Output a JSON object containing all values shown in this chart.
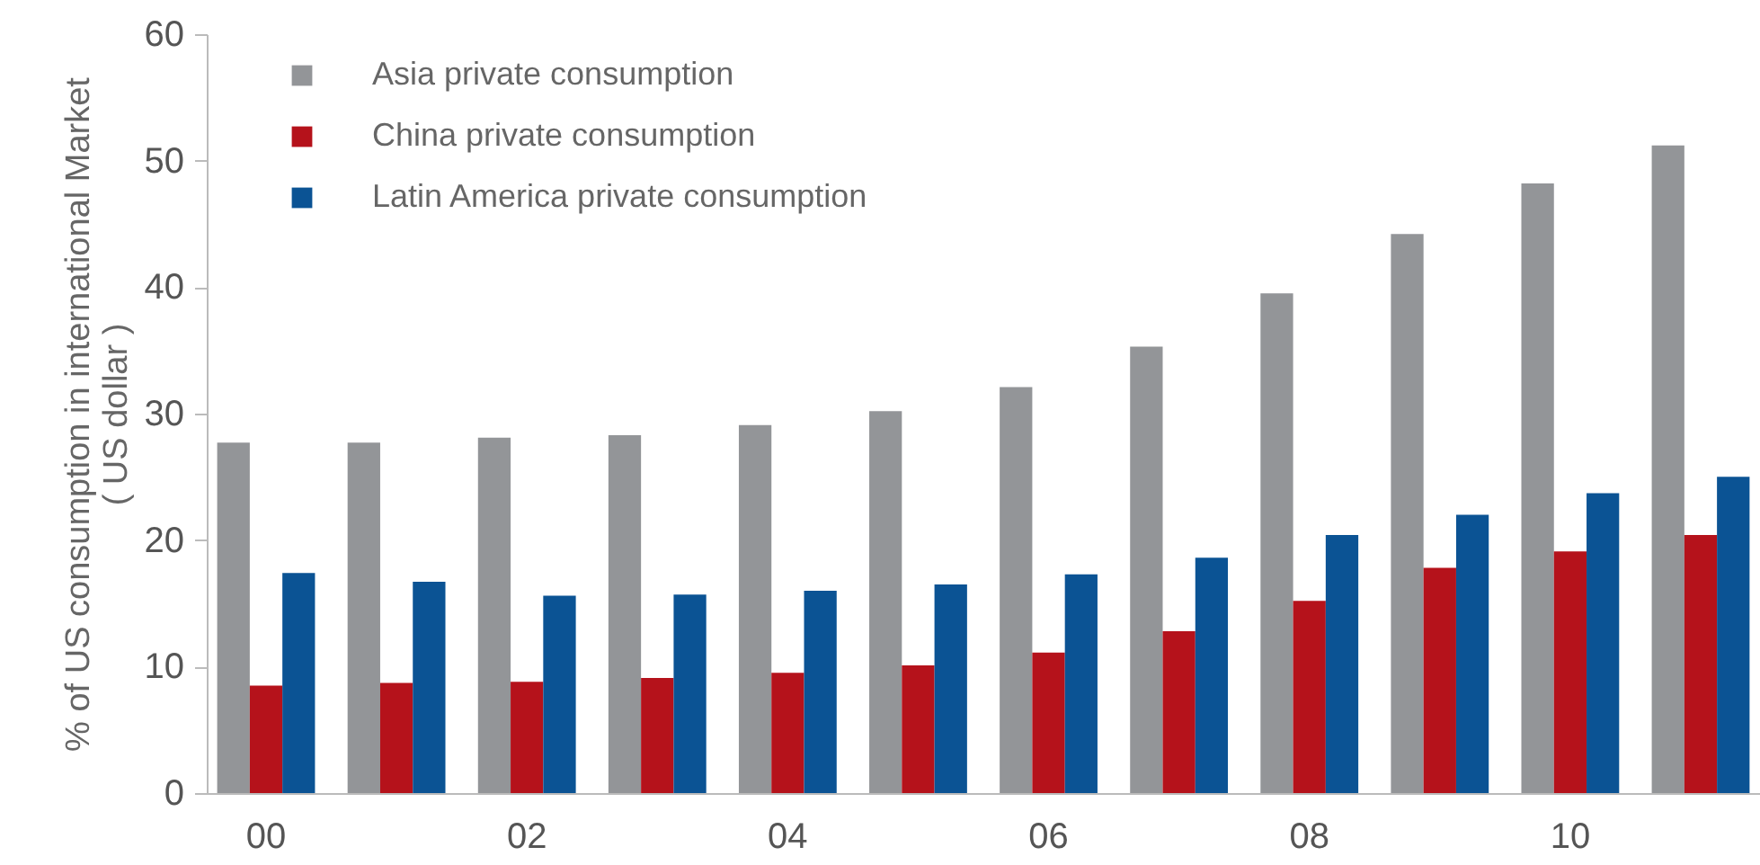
{
  "chart_data": {
    "type": "bar",
    "ylabel": "% of US consumption in international Market\n( US dollar )",
    "categories": [
      "00",
      null,
      "02",
      null,
      "04",
      null,
      "06",
      null,
      "08",
      null,
      "10",
      null
    ],
    "series": [
      {
        "name": "Asia private consumption",
        "color": "#939598",
        "values": [
          27.7,
          27.7,
          28.1,
          28.3,
          29.1,
          30.2,
          32.1,
          35.3,
          39.5,
          44.2,
          48.2,
          51.2
        ]
      },
      {
        "name": "China private consumption",
        "color": "#b5121b",
        "values": [
          8.5,
          8.7,
          8.8,
          9.1,
          9.5,
          10.1,
          11.1,
          12.8,
          15.2,
          17.8,
          19.1,
          20.4
        ]
      },
      {
        "name": "Latin America private consumption",
        "color": "#0b5394",
        "values": [
          17.4,
          16.7,
          15.6,
          15.7,
          16.0,
          16.5,
          17.3,
          18.6,
          20.4,
          22.0,
          23.7,
          25.0
        ]
      }
    ],
    "ylim": [
      0,
      60
    ],
    "yticks": [
      0,
      10,
      20,
      30,
      40,
      50,
      60
    ],
    "grid": false,
    "legend": "top left"
  }
}
